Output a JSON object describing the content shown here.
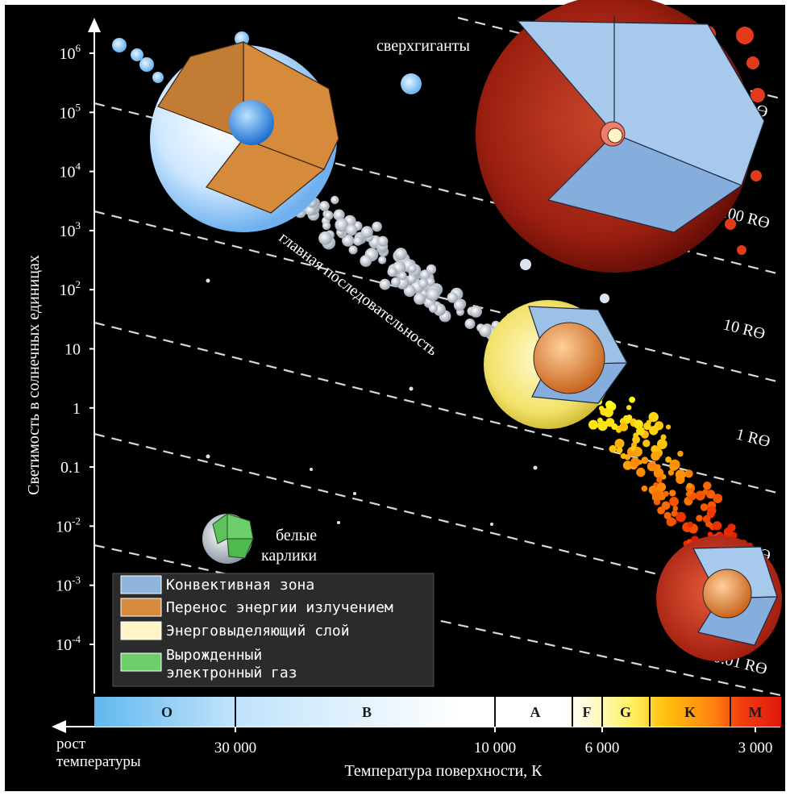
{
  "y_axis": {
    "label": "Светимость в солнечных единицах",
    "ticks": [
      {
        "base": "10",
        "exp": "6"
      },
      {
        "base": "10",
        "exp": "5"
      },
      {
        "base": "10",
        "exp": "4"
      },
      {
        "base": "10",
        "exp": "3"
      },
      {
        "base": "10",
        "exp": "2"
      },
      {
        "base": "10",
        "exp": ""
      },
      {
        "base": "1",
        "exp": ""
      },
      {
        "base": "0.1",
        "exp": ""
      },
      {
        "base": "10",
        "exp": "-2"
      },
      {
        "base": "10",
        "exp": "-3"
      },
      {
        "base": "10",
        "exp": "-4"
      }
    ]
  },
  "x_axis": {
    "label": "Температура поверхности, К",
    "arrow_label_line1": "рост",
    "arrow_label_line2": "температуры",
    "ticks": [
      "30 000",
      "10 000",
      "6 000",
      "3 000"
    ]
  },
  "spectral_classes": [
    "O",
    "B",
    "A",
    "F",
    "G",
    "K",
    "M"
  ],
  "radius_lines": [
    "1000 Rϴ",
    "100 Rϴ",
    "10 Rϴ",
    "1 Rϴ",
    "0.1 Rϴ",
    "0.01 Rϴ"
  ],
  "labels": {
    "supergiants": "сверхгиганты",
    "main_sequence": "главная последовательность",
    "white_dwarfs_line1": "белые",
    "white_dwarfs_line2": "карлики"
  },
  "legend": [
    {
      "text": "Конвективная зона",
      "color": "#8fb5dd"
    },
    {
      "text": "Перенос энергии излучением",
      "color": "#d58a3c"
    },
    {
      "text": "Энерговыделяющий слой",
      "color": "#fff4c8"
    },
    {
      "text": "Вырожденный",
      "text2": "электронный газ",
      "color": "#6ccf6c"
    }
  ]
}
